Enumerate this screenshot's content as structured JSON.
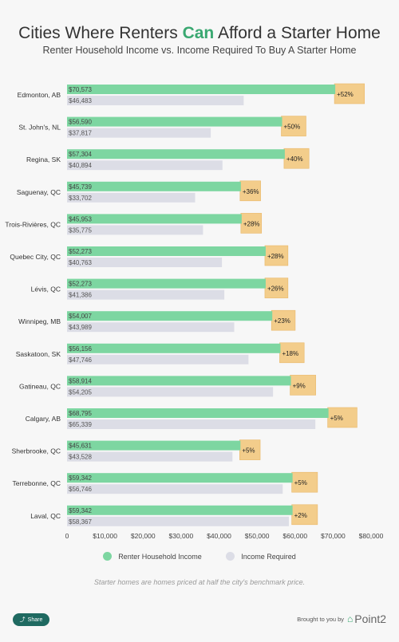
{
  "title": {
    "before": "Cities Where Renters ",
    "highlight": "Can",
    "after": " Afford a Starter Home"
  },
  "subtitle": "Renter Household Income vs. Income Required To Buy A Starter Home",
  "colors": {
    "income": "#7dd6a1",
    "required": "#dcdde6",
    "gap": "#f3cd8b",
    "gap_border": "#e9b768",
    "highlight": "#3aa871"
  },
  "chart_data": {
    "type": "bar",
    "orientation": "horizontal",
    "categories": [
      "Edmonton, AB",
      "St. John's, NL",
      "Regina, SK",
      "Saguenay, QC",
      "Trois-Rivières, QC",
      "Quebec City, QC",
      "Lévis, QC",
      "Winnipeg, MB",
      "Saskatoon, SK",
      "Gatineau, QC",
      "Calgary, AB",
      "Sherbrooke, QC",
      "Terrebonne, QC",
      "Laval, QC"
    ],
    "series": [
      {
        "name": "Renter Household Income",
        "values": [
          70573,
          56590,
          57304,
          45739,
          45953,
          52273,
          52273,
          54007,
          56156,
          58914,
          68795,
          45631,
          59342,
          59342
        ],
        "labels": [
          "$70,573",
          "$56,590",
          "$57,304",
          "$45,739",
          "$45,953",
          "$52,273",
          "$52,273",
          "$54,007",
          "$56,156",
          "$58,914",
          "$68,795",
          "$45,631",
          "$59,342",
          "$59,342"
        ]
      },
      {
        "name": "Income Required",
        "values": [
          46483,
          37817,
          40894,
          33702,
          35775,
          40763,
          41386,
          43989,
          47746,
          54205,
          65339,
          43528,
          56746,
          58367
        ],
        "labels": [
          "$46,483",
          "$37,817",
          "$40,894",
          "$33,702",
          "$35,775",
          "$40,763",
          "$41,386",
          "$43,989",
          "$47,746",
          "$54,205",
          "$65,339",
          "$43,528",
          "$56,746",
          "$58,367"
        ]
      }
    ],
    "difference_labels": [
      "+52%",
      "+50%",
      "+40%",
      "+36%",
      "+28%",
      "+28%",
      "+26%",
      "+23%",
      "+18%",
      "+9%",
      "+5%",
      "+5%",
      "+5%",
      "+2%"
    ],
    "xlim": [
      0,
      80000
    ],
    "xticks": [
      0,
      10000,
      20000,
      30000,
      40000,
      50000,
      60000,
      70000,
      80000
    ],
    "xtick_labels": [
      "0",
      "$10,000",
      "$20,000",
      "$30,000",
      "$40,000",
      "$50,000",
      "$60,000",
      "$70,000",
      "$80,000"
    ],
    "grid": false,
    "legend_position": "bottom"
  },
  "legend": {
    "income_label": "Renter Household Income",
    "required_label": "Income Required"
  },
  "footnote": "Starter homes are homes priced at half the city's benchmark price.",
  "footer": {
    "share_label": "Share",
    "brought_label": "Brought to you by",
    "brand": "Point2"
  }
}
